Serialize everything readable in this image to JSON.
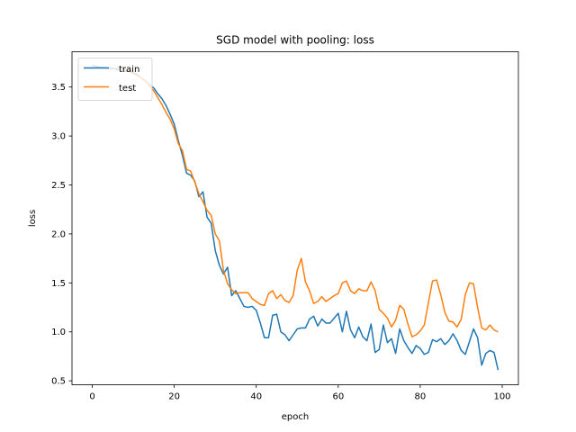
{
  "chart_data": {
    "type": "line",
    "title": "SGD model with pooling: loss",
    "xlabel": "epoch",
    "ylabel": "loss",
    "xlim": [
      -4.95,
      103.95
    ],
    "ylim": [
      0.46,
      3.86
    ],
    "xticks": [
      0,
      20,
      40,
      60,
      80,
      100
    ],
    "yticks": [
      0.5,
      1.0,
      1.5,
      2.0,
      2.5,
      3.0,
      3.5
    ],
    "xtick_labels": [
      "0",
      "20",
      "40",
      "60",
      "80",
      "100"
    ],
    "ytick_labels": [
      "0.5",
      "1.0",
      "1.5",
      "2.0",
      "2.5",
      "3.0",
      "3.5"
    ],
    "grid": false,
    "legend": {
      "position": "top-left",
      "entries": [
        "train",
        "test"
      ]
    },
    "series": [
      {
        "name": "train",
        "color": "#1f77b4",
        "x": [
          0,
          1,
          2,
          3,
          4,
          5,
          6,
          7,
          8,
          9,
          10,
          11,
          12,
          13,
          14,
          15,
          16,
          17,
          18,
          19,
          20,
          21,
          22,
          23,
          24,
          25,
          26,
          27,
          28,
          29,
          30,
          31,
          32,
          33,
          34,
          35,
          36,
          37,
          38,
          39,
          40,
          41,
          42,
          43,
          44,
          45,
          46,
          47,
          48,
          49,
          50,
          51,
          52,
          53,
          54,
          55,
          56,
          57,
          58,
          59,
          60,
          61,
          62,
          63,
          64,
          65,
          66,
          67,
          68,
          69,
          70,
          71,
          72,
          73,
          74,
          75,
          76,
          77,
          78,
          79,
          80,
          81,
          82,
          83,
          84,
          85,
          86,
          87,
          88,
          89,
          90,
          91,
          92,
          93,
          94,
          95,
          96,
          97,
          98,
          99
        ],
        "values": [
          3.72,
          3.71,
          3.7,
          3.7,
          3.69,
          3.69,
          3.68,
          3.67,
          3.66,
          3.66,
          3.64,
          3.62,
          3.59,
          3.56,
          3.52,
          3.49,
          3.43,
          3.38,
          3.31,
          3.22,
          3.12,
          2.95,
          2.8,
          2.62,
          2.6,
          2.54,
          2.38,
          2.43,
          2.17,
          2.11,
          1.83,
          1.68,
          1.59,
          1.66,
          1.37,
          1.42,
          1.34,
          1.26,
          1.25,
          1.26,
          1.22,
          1.09,
          0.94,
          0.94,
          1.17,
          1.18,
          1.0,
          0.97,
          0.91,
          0.97,
          1.03,
          1.04,
          1.04,
          1.13,
          1.16,
          1.06,
          1.13,
          1.09,
          1.09,
          1.14,
          1.19,
          1.0,
          1.21,
          1.02,
          0.94,
          1.05,
          0.95,
          0.91,
          1.08,
          0.79,
          0.82,
          1.07,
          0.89,
          0.93,
          0.78,
          1.03,
          0.91,
          0.84,
          0.78,
          0.86,
          0.83,
          0.77,
          0.79,
          0.92,
          0.9,
          0.93,
          0.87,
          0.91,
          0.98,
          0.91,
          0.81,
          0.77,
          0.9,
          1.03,
          0.94,
          0.66,
          0.78,
          0.81,
          0.79,
          0.61
        ]
      },
      {
        "name": "test",
        "color": "#ff7f0e",
        "x": [
          6,
          7,
          8,
          9,
          10,
          11,
          12,
          13,
          14,
          15,
          16,
          17,
          18,
          19,
          20,
          21,
          22,
          23,
          24,
          25,
          26,
          27,
          28,
          29,
          30,
          31,
          32,
          33,
          34,
          35,
          36,
          37,
          38,
          39,
          40,
          41,
          42,
          43,
          44,
          45,
          46,
          47,
          48,
          49,
          50,
          51,
          52,
          53,
          54,
          55,
          56,
          57,
          58,
          59,
          60,
          61,
          62,
          63,
          64,
          65,
          66,
          67,
          68,
          69,
          70,
          71,
          72,
          73,
          74,
          75,
          76,
          77,
          78,
          79,
          80,
          81,
          82,
          83,
          84,
          85,
          86,
          87,
          88,
          89,
          90,
          91,
          92,
          93,
          94,
          95,
          96,
          97,
          98,
          99
        ],
        "values": [
          3.7,
          3.69,
          3.68,
          3.67,
          3.65,
          3.63,
          3.59,
          3.56,
          3.51,
          3.46,
          3.39,
          3.32,
          3.24,
          3.17,
          3.07,
          2.92,
          2.85,
          2.66,
          2.64,
          2.53,
          2.41,
          2.33,
          2.24,
          2.19,
          2.0,
          1.93,
          1.63,
          1.49,
          1.43,
          1.39,
          1.4,
          1.4,
          1.4,
          1.34,
          1.31,
          1.28,
          1.27,
          1.39,
          1.42,
          1.34,
          1.38,
          1.32,
          1.3,
          1.37,
          1.63,
          1.75,
          1.51,
          1.42,
          1.29,
          1.31,
          1.36,
          1.31,
          1.34,
          1.37,
          1.39,
          1.5,
          1.52,
          1.42,
          1.39,
          1.44,
          1.42,
          1.42,
          1.51,
          1.42,
          1.23,
          1.19,
          1.14,
          1.05,
          1.12,
          1.27,
          1.23,
          1.08,
          0.95,
          0.97,
          1.01,
          1.07,
          1.3,
          1.52,
          1.53,
          1.38,
          1.2,
          1.11,
          1.1,
          1.05,
          1.13,
          1.38,
          1.5,
          1.49,
          1.25,
          1.04,
          1.02,
          1.07,
          1.02,
          1.0
        ]
      }
    ]
  }
}
